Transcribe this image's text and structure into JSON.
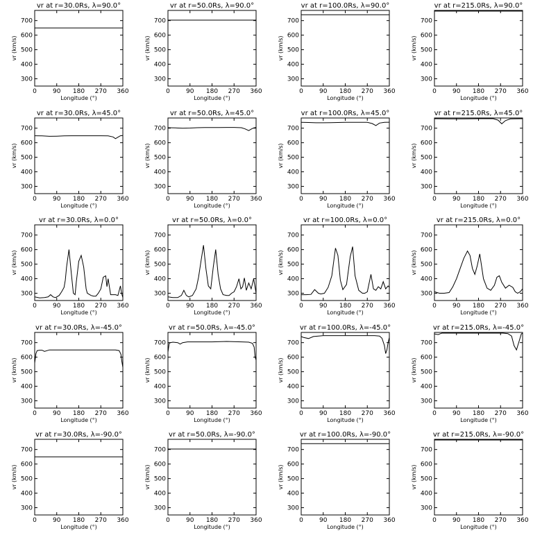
{
  "chart_data": [
    {
      "type": "line",
      "title": "vr at r=30.0Rs, λ=90.0°",
      "xlabel": "Longitude (°)",
      "ylabel": "vr (km/s)",
      "xlim": [
        0,
        360
      ],
      "ylim": [
        250,
        770
      ],
      "xticks": [
        0,
        90,
        180,
        270,
        360
      ],
      "yticks": [
        300,
        400,
        500,
        600,
        700
      ],
      "x": [
        0,
        360
      ],
      "y": [
        650,
        650
      ]
    },
    {
      "type": "line",
      "title": "vr at r=50.0Rs, λ=90.0°",
      "xlabel": "Longitude (°)",
      "ylabel": "vr (km/s)",
      "xlim": [
        0,
        360
      ],
      "ylim": [
        250,
        770
      ],
      "xticks": [
        0,
        90,
        180,
        270,
        360
      ],
      "yticks": [
        300,
        400,
        500,
        600,
        700
      ],
      "x": [
        0,
        360
      ],
      "y": [
        703,
        703
      ]
    },
    {
      "type": "line",
      "title": "vr at r=100.0Rs, λ=90.0°",
      "xlabel": "Longitude (°)",
      "ylabel": "vr (km/s)",
      "xlim": [
        0,
        360
      ],
      "ylim": [
        250,
        770
      ],
      "xticks": [
        0,
        90,
        180,
        270,
        360
      ],
      "yticks": [
        300,
        400,
        500,
        600,
        700
      ],
      "x": [
        0,
        360
      ],
      "y": [
        740,
        740
      ]
    },
    {
      "type": "line",
      "title": "vr at r=215.0Rs, λ=90.0°",
      "xlabel": "Longitude (°)",
      "ylabel": "vr (km/s)",
      "xlim": [
        0,
        360
      ],
      "ylim": [
        250,
        770
      ],
      "xticks": [
        0,
        90,
        180,
        270,
        360
      ],
      "yticks": [
        300,
        400,
        500,
        600,
        700
      ],
      "x": [
        0,
        360
      ],
      "y": [
        765,
        765
      ]
    },
    {
      "type": "line",
      "title": "vr at r=30.0Rs, λ=45.0°",
      "xlabel": "Longitude (°)",
      "ylabel": "vr (km/s)",
      "xlim": [
        0,
        360
      ],
      "ylim": [
        250,
        770
      ],
      "xticks": [
        0,
        90,
        180,
        270,
        360
      ],
      "yticks": [
        300,
        400,
        500,
        600,
        700
      ],
      "x": [
        0,
        30,
        60,
        90,
        120,
        150,
        180,
        210,
        240,
        270,
        300,
        320,
        330,
        340,
        350,
        360
      ],
      "y": [
        648,
        647,
        644,
        645,
        647,
        648,
        648,
        648,
        648,
        648,
        647,
        640,
        628,
        638,
        648,
        650
      ]
    },
    {
      "type": "line",
      "title": "vr at r=50.0Rs, λ=45.0°",
      "xlabel": "Longitude (°)",
      "ylabel": "vr (km/s)",
      "xlim": [
        0,
        360
      ],
      "ylim": [
        250,
        770
      ],
      "xticks": [
        0,
        90,
        180,
        270,
        360
      ],
      "yticks": [
        300,
        400,
        500,
        600,
        700
      ],
      "x": [
        0,
        30,
        60,
        90,
        120,
        150,
        180,
        210,
        240,
        270,
        300,
        315,
        330,
        340,
        350,
        360
      ],
      "y": [
        703,
        702,
        700,
        701,
        703,
        704,
        704,
        704,
        705,
        705,
        703,
        695,
        683,
        693,
        702,
        705
      ]
    },
    {
      "type": "line",
      "title": "vr at r=100.0Rs, λ=45.0°",
      "xlabel": "Longitude (°)",
      "ylabel": "vr (km/s)",
      "xlim": [
        0,
        360
      ],
      "ylim": [
        250,
        770
      ],
      "xticks": [
        0,
        90,
        180,
        270,
        360
      ],
      "yticks": [
        300,
        400,
        500,
        600,
        700
      ],
      "x": [
        0,
        30,
        60,
        90,
        120,
        150,
        180,
        210,
        240,
        270,
        290,
        305,
        320,
        340,
        360
      ],
      "y": [
        740,
        739,
        737,
        737,
        738,
        739,
        740,
        740,
        740,
        740,
        732,
        718,
        735,
        740,
        741
      ]
    },
    {
      "type": "line",
      "title": "vr at r=215.0Rs, λ=45.0°",
      "xlabel": "Longitude (°)",
      "ylabel": "vr (km/s)",
      "xlim": [
        0,
        360
      ],
      "ylim": [
        250,
        770
      ],
      "xticks": [
        0,
        90,
        180,
        270,
        360
      ],
      "yticks": [
        300,
        400,
        500,
        600,
        700
      ],
      "x": [
        0,
        60,
        120,
        180,
        240,
        260,
        275,
        290,
        310,
        360
      ],
      "y": [
        765,
        764,
        764,
        765,
        765,
        755,
        730,
        752,
        764,
        765
      ]
    },
    {
      "type": "line",
      "title": "vr at r=30.0Rs, λ=0.0°",
      "xlabel": "Longitude (°)",
      "ylabel": "vr (km/s)",
      "xlim": [
        0,
        360
      ],
      "ylim": [
        250,
        770
      ],
      "xticks": [
        0,
        90,
        180,
        270,
        360
      ],
      "yticks": [
        300,
        400,
        500,
        600,
        700
      ],
      "x": [
        0,
        20,
        40,
        55,
        65,
        75,
        85,
        100,
        110,
        120,
        125,
        130,
        140,
        150,
        158,
        165,
        170,
        180,
        190,
        200,
        210,
        215,
        220,
        230,
        240,
        250,
        260,
        270,
        280,
        290,
        295,
        300,
        305,
        310,
        320,
        330,
        340,
        350,
        355,
        360
      ],
      "y": [
        275,
        268,
        270,
        275,
        290,
        275,
        270,
        285,
        310,
        340,
        390,
        480,
        600,
        430,
        300,
        290,
        380,
        520,
        560,
        480,
        330,
        300,
        295,
        285,
        280,
        280,
        300,
        330,
        410,
        420,
        345,
        400,
        345,
        290,
        290,
        290,
        285,
        350,
        300,
        270
      ]
    },
    {
      "type": "line",
      "title": "vr at r=50.0Rs, λ=0.0°",
      "xlabel": "Longitude (°)",
      "ylabel": "vr (km/s)",
      "xlim": [
        0,
        360
      ],
      "ylim": [
        250,
        770
      ],
      "xticks": [
        0,
        90,
        180,
        270,
        360
      ],
      "yticks": [
        300,
        400,
        500,
        600,
        700
      ],
      "x": [
        0,
        20,
        40,
        55,
        65,
        75,
        85,
        100,
        115,
        125,
        135,
        145,
        155,
        165,
        175,
        185,
        195,
        205,
        215,
        225,
        240,
        250,
        260,
        270,
        280,
        290,
        298,
        305,
        312,
        320,
        330,
        340,
        350,
        360
      ],
      "y": [
        275,
        270,
        270,
        285,
        320,
        285,
        275,
        285,
        330,
        410,
        520,
        630,
        470,
        350,
        330,
        480,
        600,
        430,
        330,
        290,
        285,
        285,
        300,
        310,
        345,
        400,
        330,
        345,
        405,
        320,
        370,
        330,
        400,
        300
      ]
    },
    {
      "type": "line",
      "title": "vr at r=100.0Rs, λ=0.0°",
      "xlabel": "Longitude (°)",
      "ylabel": "vr (km/s)",
      "xlim": [
        0,
        360
      ],
      "ylim": [
        250,
        770
      ],
      "xticks": [
        0,
        90,
        180,
        270,
        360
      ],
      "yticks": [
        300,
        400,
        500,
        600,
        700
      ],
      "x": [
        0,
        20,
        40,
        55,
        70,
        80,
        95,
        110,
        125,
        140,
        150,
        160,
        170,
        185,
        200,
        210,
        220,
        235,
        250,
        260,
        270,
        285,
        295,
        305,
        315,
        325,
        335,
        345,
        355,
        360
      ],
      "y": [
        290,
        290,
        292,
        325,
        300,
        295,
        300,
        340,
        420,
        610,
        560,
        390,
        325,
        360,
        550,
        620,
        420,
        320,
        300,
        300,
        310,
        430,
        330,
        320,
        345,
        330,
        380,
        330,
        350,
        340
      ]
    },
    {
      "type": "line",
      "title": "vr at r=215.0Rs, λ=0.0°",
      "xlabel": "Longitude (°)",
      "ylabel": "vr (km/s)",
      "xlim": [
        0,
        360
      ],
      "ylim": [
        250,
        770
      ],
      "xticks": [
        0,
        90,
        180,
        270,
        360
      ],
      "yticks": [
        300,
        400,
        500,
        600,
        700
      ],
      "x": [
        0,
        20,
        40,
        60,
        75,
        90,
        105,
        120,
        135,
        145,
        155,
        165,
        175,
        185,
        200,
        215,
        230,
        245,
        255,
        265,
        275,
        290,
        305,
        320,
        330,
        340,
        350,
        360
      ],
      "y": [
        310,
        300,
        300,
        305,
        345,
        400,
        470,
        540,
        590,
        560,
        470,
        430,
        490,
        570,
        400,
        335,
        320,
        355,
        410,
        420,
        375,
        335,
        355,
        340,
        310,
        300,
        310,
        330
      ]
    },
    {
      "type": "line",
      "title": "vr at r=30.0Rs, λ=-45.0°",
      "xlabel": "Longitude (°)",
      "ylabel": "vr (km/s)",
      "xlim": [
        0,
        360
      ],
      "ylim": [
        250,
        770
      ],
      "xticks": [
        0,
        90,
        180,
        270,
        360
      ],
      "yticks": [
        300,
        400,
        500,
        600,
        700
      ],
      "x": [
        0,
        5,
        10,
        20,
        30,
        40,
        60,
        80,
        120,
        180,
        240,
        300,
        330,
        345,
        352,
        356,
        360
      ],
      "y": [
        560,
        625,
        645,
        648,
        648,
        640,
        650,
        650,
        650,
        650,
        650,
        650,
        650,
        645,
        620,
        570,
        530
      ]
    },
    {
      "type": "line",
      "title": "vr at r=50.0Rs, λ=-45.0°",
      "xlabel": "Longitude (°)",
      "ylabel": "vr (km/s)",
      "xlim": [
        0,
        360
      ],
      "ylim": [
        250,
        770
      ],
      "xticks": [
        0,
        90,
        180,
        270,
        360
      ],
      "yticks": [
        300,
        400,
        500,
        600,
        700
      ],
      "x": [
        0,
        5,
        10,
        20,
        40,
        50,
        60,
        80,
        120,
        180,
        240,
        300,
        330,
        345,
        352,
        356,
        360
      ],
      "y": [
        635,
        695,
        700,
        703,
        700,
        690,
        700,
        705,
        705,
        705,
        708,
        705,
        703,
        695,
        670,
        600,
        580
      ]
    },
    {
      "type": "line",
      "title": "vr at r=100.0Rs, λ=-45.0°",
      "xlabel": "Longitude (°)",
      "ylabel": "vr (km/s)",
      "xlim": [
        0,
        360
      ],
      "ylim": [
        250,
        770
      ],
      "xticks": [
        0,
        90,
        180,
        270,
        360
      ],
      "yticks": [
        300,
        400,
        500,
        600,
        700
      ],
      "x": [
        0,
        10,
        30,
        50,
        70,
        90,
        120,
        180,
        240,
        300,
        320,
        330,
        340,
        345,
        350,
        355,
        360
      ],
      "y": [
        742,
        735,
        728,
        742,
        745,
        748,
        748,
        748,
        748,
        748,
        745,
        730,
        680,
        625,
        650,
        700,
        735
      ]
    },
    {
      "type": "line",
      "title": "vr at r=215.0Rs, λ=-45.0°",
      "xlabel": "Longitude (°)",
      "ylabel": "vr (km/s)",
      "xlim": [
        0,
        360
      ],
      "ylim": [
        250,
        770
      ],
      "xticks": [
        0,
        90,
        180,
        270,
        360
      ],
      "yticks": [
        300,
        400,
        500,
        600,
        700
      ],
      "x": [
        0,
        15,
        30,
        60,
        120,
        180,
        240,
        280,
        300,
        315,
        325,
        335,
        345,
        355,
        360
      ],
      "y": [
        760,
        755,
        765,
        765,
        765,
        765,
        765,
        765,
        762,
        745,
        680,
        650,
        705,
        760,
        765
      ]
    },
    {
      "type": "line",
      "title": "vr at r=30.0Rs, λ=-90.0°",
      "xlabel": "Longitude (°)",
      "ylabel": "vr (km/s)",
      "xlim": [
        0,
        360
      ],
      "ylim": [
        250,
        770
      ],
      "xticks": [
        0,
        90,
        180,
        270,
        360
      ],
      "yticks": [
        300,
        400,
        500,
        600,
        700
      ],
      "x": [
        0,
        360
      ],
      "y": [
        650,
        650
      ]
    },
    {
      "type": "line",
      "title": "vr at r=50.0Rs, λ=-90.0°",
      "xlabel": "Longitude (°)",
      "ylabel": "vr (km/s)",
      "xlim": [
        0,
        360
      ],
      "ylim": [
        250,
        770
      ],
      "xticks": [
        0,
        90,
        180,
        270,
        360
      ],
      "yticks": [
        300,
        400,
        500,
        600,
        700
      ],
      "x": [
        0,
        360
      ],
      "y": [
        703,
        703
      ]
    },
    {
      "type": "line",
      "title": "vr at r=100.0Rs, λ=-90.0°",
      "xlabel": "Longitude (°)",
      "ylabel": "vr (km/s)",
      "xlim": [
        0,
        360
      ],
      "ylim": [
        250,
        770
      ],
      "xticks": [
        0,
        90,
        180,
        270,
        360
      ],
      "yticks": [
        300,
        400,
        500,
        600,
        700
      ],
      "x": [
        0,
        360
      ],
      "y": [
        740,
        740
      ]
    },
    {
      "type": "line",
      "title": "vr at r=215.0Rs, λ=-90.0°",
      "xlabel": "Longitude (°)",
      "ylabel": "vr (km/s)",
      "xlim": [
        0,
        360
      ],
      "ylim": [
        250,
        770
      ],
      "xticks": [
        0,
        90,
        180,
        270,
        360
      ],
      "yticks": [
        300,
        400,
        500,
        600,
        700
      ],
      "x": [
        0,
        360
      ],
      "y": [
        765,
        765
      ]
    }
  ]
}
